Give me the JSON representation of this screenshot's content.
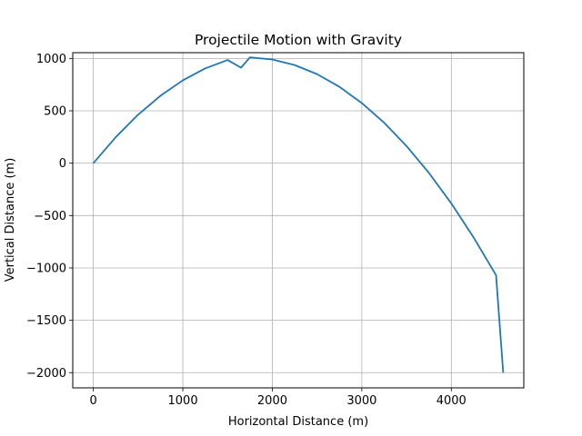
{
  "chart_data": {
    "type": "line",
    "title": "Projectile Motion with Gravity",
    "xlabel": "Horizontal Distance (m)",
    "ylabel": "Vertical Distance (m)",
    "xlim": [
      -230,
      4810
    ],
    "ylim": [
      -2145,
      1055
    ],
    "xticks": [
      0,
      1000,
      2000,
      3000,
      4000
    ],
    "yticks": [
      -2000,
      -1500,
      -1000,
      -500,
      0,
      500,
      1000
    ],
    "xtick_labels": [
      "0",
      "1000",
      "2000",
      "3000",
      "4000"
    ],
    "ytick_labels": [
      "−2000",
      "−1500",
      "−1000",
      "−500",
      "0",
      "500",
      "1000"
    ],
    "grid": true,
    "color": "#1f77b4",
    "series": [
      {
        "x": [
          0,
          250,
          500,
          750,
          1000,
          1250,
          1500,
          1650,
          1750,
          2000,
          2250,
          2500,
          2750,
          3000,
          3250,
          3500,
          3750,
          4000,
          4250,
          4500,
          4580
        ],
        "y": [
          0,
          248,
          463,
          644,
          791,
          905,
          985,
          912,
          1010,
          990,
          937,
          850,
          729,
          574,
          386,
          163,
          -93,
          -384,
          -710,
          -1069,
          -2000
        ]
      }
    ]
  }
}
